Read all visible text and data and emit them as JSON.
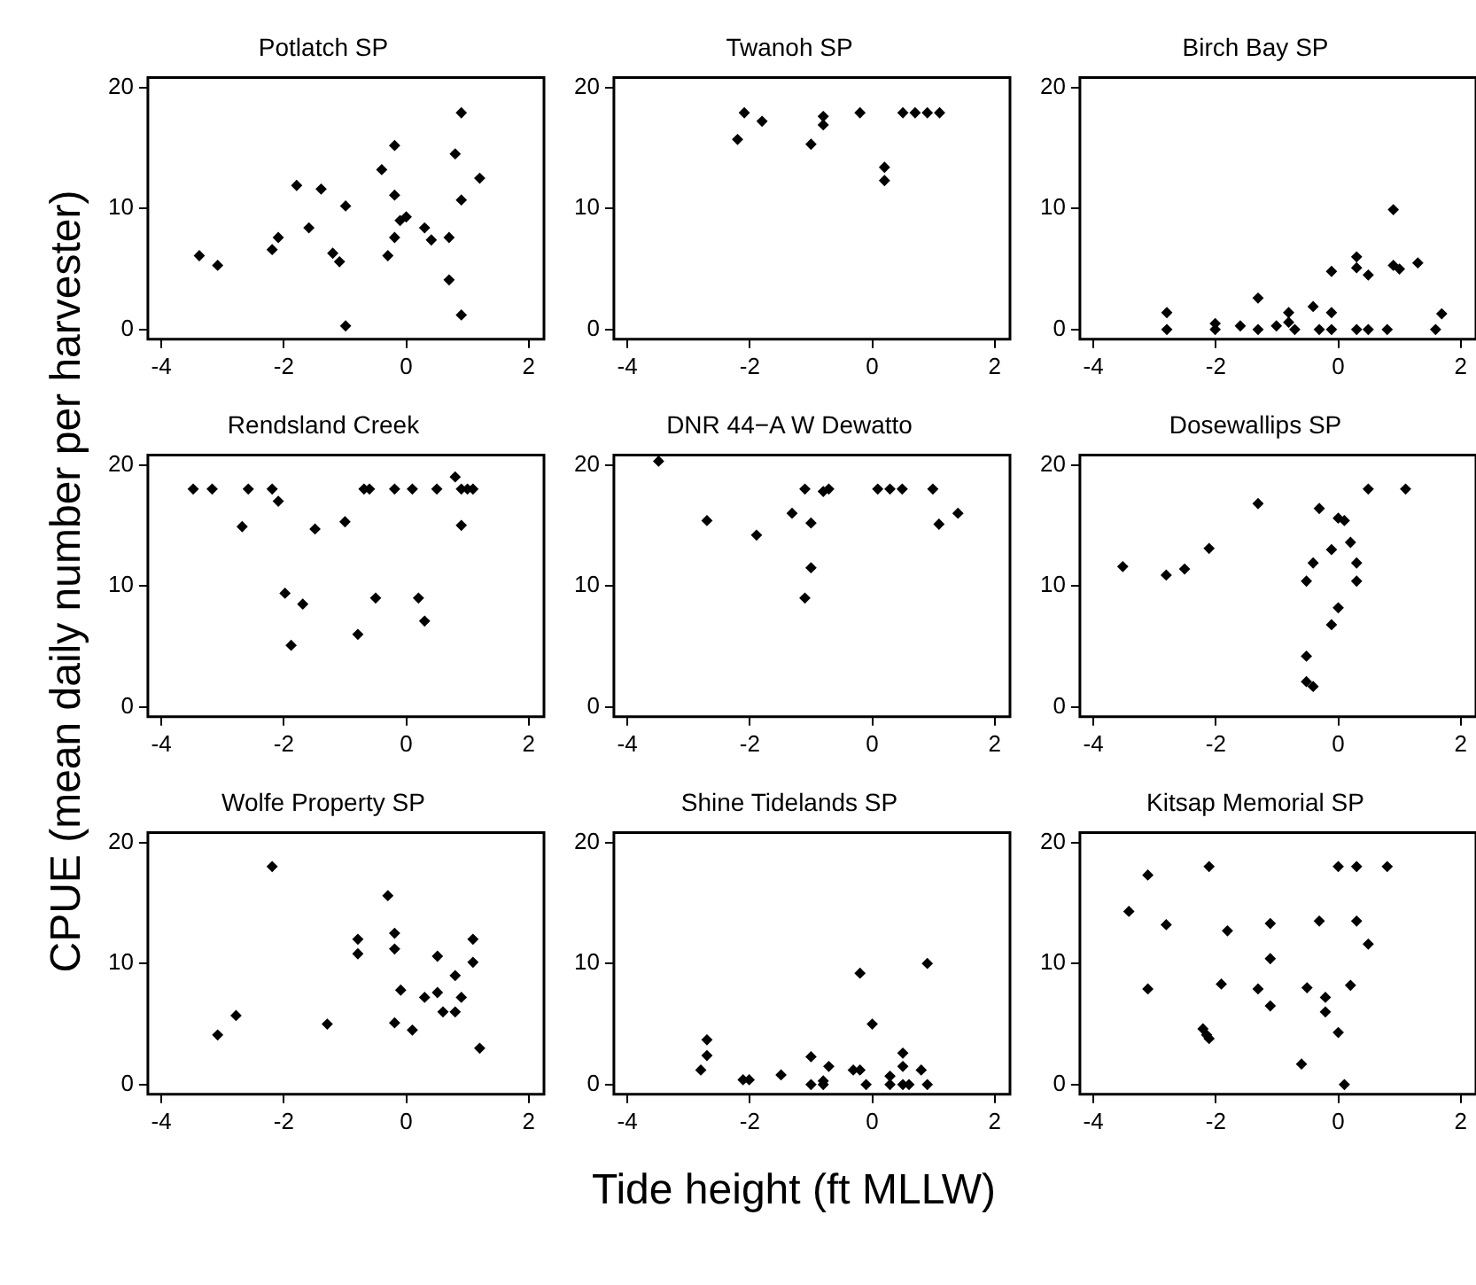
{
  "chart_data": [
    {
      "type": "scatter",
      "title": "Potlatch SP",
      "color": "#000000",
      "marker": "diamond",
      "grid": false,
      "xlim": [
        -4.22,
        2.25
      ],
      "ylim": [
        -0.8,
        20.8
      ],
      "xticks": [
        -4,
        -2,
        0,
        2
      ],
      "yticks": [
        0,
        10,
        20
      ],
      "x": [
        -3.38,
        -3.08,
        -2.19,
        -2.09,
        -1.79,
        -1.59,
        -1.39,
        -1.2,
        -1.09,
        -0.99,
        -0.99,
        -0.4,
        -0.3,
        -0.19,
        -0.19,
        -0.19,
        -0.1,
        0.0,
        0.3,
        0.41,
        0.7,
        0.7,
        0.8,
        0.9,
        0.9,
        0.9,
        1.2
      ],
      "values": [
        6.1,
        5.3,
        6.6,
        7.6,
        11.9,
        8.4,
        11.6,
        6.3,
        5.6,
        10.2,
        0.3,
        13.2,
        6.1,
        15.2,
        11.1,
        7.6,
        9.0,
        9.3,
        8.4,
        7.4,
        7.6,
        4.1,
        14.5,
        17.9,
        10.7,
        1.2,
        12.5
      ]
    },
    {
      "type": "scatter",
      "title": "Twanoh SP",
      "color": "#000000",
      "marker": "diamond",
      "grid": false,
      "xlim": [
        -4.22,
        2.25
      ],
      "ylim": [
        -0.8,
        20.8
      ],
      "xticks": [
        -4,
        -2,
        0,
        2
      ],
      "yticks": [
        0,
        10,
        20
      ],
      "x": [
        -2.2,
        -2.09,
        -1.8,
        -1.0,
        -0.8,
        -0.8,
        -0.2,
        0.2,
        0.2,
        0.5,
        0.7,
        0.9,
        1.1
      ],
      "values": [
        15.7,
        17.9,
        17.2,
        15.3,
        17.6,
        16.9,
        17.9,
        13.4,
        12.3,
        17.9,
        17.9,
        17.9,
        17.9
      ]
    },
    {
      "type": "scatter",
      "title": "Birch Bay SP",
      "color": "#000000",
      "marker": "diamond",
      "grid": false,
      "xlim": [
        -4.22,
        2.25
      ],
      "ylim": [
        -0.8,
        20.8
      ],
      "xticks": [
        -4,
        -2,
        0,
        2
      ],
      "yticks": [
        0,
        10,
        20
      ],
      "x": [
        -2.8,
        -2.8,
        -2.01,
        -2.01,
        -1.6,
        -1.31,
        -1.31,
        -1.01,
        -0.81,
        -0.81,
        -0.71,
        -0.41,
        -0.31,
        -0.11,
        -0.11,
        -0.11,
        0.3,
        0.3,
        0.3,
        0.49,
        0.49,
        0.8,
        0.9,
        0.9,
        1.0,
        1.3,
        1.59,
        1.69
      ],
      "values": [
        1.4,
        0,
        0.5,
        0,
        0.3,
        2.6,
        0,
        0.3,
        1.4,
        0.6,
        0,
        1.9,
        0,
        4.8,
        1.4,
        0,
        6.0,
        5.1,
        0,
        4.5,
        0,
        0,
        9.9,
        5.3,
        5.0,
        5.5,
        0,
        1.3
      ]
    },
    {
      "type": "scatter",
      "title": "Rendsland Creek",
      "ylabel": "CPUE (mean daily number per harvester)",
      "color": "#000000",
      "marker": "diamond",
      "grid": false,
      "xlim": [
        -4.22,
        2.25
      ],
      "ylim": [
        -0.8,
        20.8
      ],
      "xticks": [
        -4,
        -2,
        0,
        2
      ],
      "yticks": [
        0,
        10,
        20
      ],
      "x": [
        -3.48,
        -3.17,
        -2.68,
        -2.58,
        -2.19,
        -2.09,
        -1.98,
        -1.88,
        -1.69,
        -1.49,
        -1.0,
        -0.79,
        -0.69,
        -0.6,
        -0.5,
        -0.19,
        0.1,
        0.2,
        0.3,
        0.5,
        0.8,
        0.9,
        0.9,
        1.0,
        1.09
      ],
      "values": [
        18.0,
        18.0,
        14.9,
        18.0,
        18.0,
        17.0,
        9.4,
        5.1,
        8.5,
        14.7,
        15.3,
        6.0,
        18.0,
        18.0,
        9.0,
        18.0,
        18.0,
        9.0,
        7.1,
        18.0,
        19.0,
        18.0,
        15.0,
        18.0,
        18.0
      ]
    },
    {
      "type": "scatter",
      "title": "DNR 44−A W Dewatto",
      "color": "#000000",
      "marker": "diamond",
      "grid": false,
      "xlim": [
        -4.22,
        2.25
      ],
      "ylim": [
        -0.8,
        20.8
      ],
      "xticks": [
        -4,
        -2,
        0,
        2
      ],
      "yticks": [
        0,
        10,
        20
      ],
      "x": [
        -3.49,
        -2.7,
        -1.89,
        -1.31,
        -1.1,
        -1.1,
        -1.0,
        -1.0,
        -0.8,
        -0.71,
        0.09,
        0.29,
        0.49,
        0.99,
        1.09,
        1.4
      ],
      "values": [
        20.3,
        15.4,
        14.2,
        16.0,
        18.0,
        9.0,
        15.2,
        11.5,
        17.8,
        18.0,
        18.0,
        18.0,
        18.0,
        18.0,
        15.1,
        16.0
      ]
    },
    {
      "type": "scatter",
      "title": "Dosewallips SP",
      "color": "#000000",
      "marker": "diamond",
      "grid": false,
      "xlim": [
        -4.22,
        2.25
      ],
      "ylim": [
        -0.8,
        20.8
      ],
      "xticks": [
        -4,
        -2,
        0,
        2
      ],
      "yticks": [
        0,
        10,
        20
      ],
      "x": [
        -3.52,
        -2.81,
        -2.51,
        -2.11,
        -1.31,
        -0.52,
        -0.52,
        -0.52,
        -0.41,
        -0.41,
        -0.31,
        -0.11,
        -0.11,
        0,
        0,
        0.1,
        0.2,
        0.3,
        0.3,
        0.49,
        1.1
      ],
      "values": [
        11.6,
        10.9,
        11.4,
        13.1,
        16.8,
        10.4,
        4.2,
        2.1,
        1.7,
        11.9,
        16.4,
        13.0,
        6.8,
        15.6,
        8.2,
        15.4,
        13.6,
        11.9,
        10.4,
        18.0,
        18.0
      ]
    },
    {
      "type": "scatter",
      "title": "Wolfe Property SP",
      "color": "#000000",
      "marker": "diamond",
      "grid": false,
      "xlim": [
        -4.22,
        2.25
      ],
      "ylim": [
        -0.8,
        20.8
      ],
      "xticks": [
        -4,
        -2,
        0,
        2
      ],
      "yticks": [
        0,
        10,
        20
      ],
      "x": [
        -3.08,
        -2.78,
        -2.19,
        -1.29,
        -0.79,
        -0.79,
        -0.3,
        -0.19,
        -0.19,
        -0.19,
        -0.09,
        0.1,
        0.3,
        0.51,
        0.51,
        0.6,
        0.8,
        0.8,
        0.9,
        1.09,
        1.09,
        1.2
      ],
      "values": [
        4.1,
        5.7,
        18.0,
        5.0,
        12.0,
        10.8,
        15.6,
        12.5,
        11.2,
        5.1,
        7.8,
        4.5,
        7.2,
        7.6,
        10.6,
        6.0,
        9.0,
        6.0,
        7.2,
        10.1,
        12.0,
        3.0
      ]
    },
    {
      "type": "scatter",
      "title": "Shine Tidelands SP",
      "xlabel": "Tide height (ft MLLW)",
      "color": "#000000",
      "marker": "diamond",
      "grid": false,
      "xlim": [
        -4.22,
        2.25
      ],
      "ylim": [
        -0.8,
        20.8
      ],
      "xticks": [
        -4,
        -2,
        0,
        2
      ],
      "yticks": [
        0,
        10,
        20
      ],
      "x": [
        -2.8,
        -2.7,
        -2.7,
        -2.11,
        -2.01,
        -1.49,
        -1.0,
        -1.0,
        -0.8,
        -0.8,
        -0.71,
        -0.31,
        -0.2,
        -0.2,
        -0.1,
        0.0,
        0.29,
        0.29,
        0.5,
        0.5,
        0.5,
        0.6,
        0.8,
        0.9,
        0.9
      ],
      "values": [
        1.2,
        2.4,
        3.7,
        0.4,
        0.4,
        0.8,
        2.3,
        0,
        0.3,
        0,
        1.5,
        1.2,
        1.2,
        9.2,
        0,
        5.0,
        0.7,
        0,
        2.6,
        1.5,
        0,
        0,
        1.2,
        0,
        10.0
      ]
    },
    {
      "type": "scatter",
      "title": "Kitsap Memorial SP",
      "color": "#000000",
      "marker": "diamond",
      "grid": false,
      "xlim": [
        -4.22,
        2.25
      ],
      "ylim": [
        -0.8,
        20.8
      ],
      "xticks": [
        -4,
        -2,
        0,
        2
      ],
      "yticks": [
        0,
        10,
        20
      ],
      "x": [
        -3.42,
        -3.11,
        -3.11,
        -2.81,
        -2.21,
        -2.15,
        -2.11,
        -2.11,
        -1.91,
        -1.81,
        -1.31,
        -1.11,
        -1.11,
        -1.11,
        -0.6,
        -0.51,
        -0.31,
        -0.21,
        -0.21,
        0,
        0,
        0.1,
        0.2,
        0.3,
        0.3,
        0.49,
        0.8
      ],
      "values": [
        14.3,
        17.3,
        7.9,
        13.2,
        4.6,
        4.1,
        3.8,
        18.0,
        8.3,
        12.7,
        7.9,
        13.3,
        10.4,
        6.5,
        1.7,
        8.0,
        13.5,
        7.2,
        6.0,
        18.0,
        4.3,
        0,
        8.2,
        18.0,
        13.5,
        11.6,
        18.0
      ]
    }
  ]
}
